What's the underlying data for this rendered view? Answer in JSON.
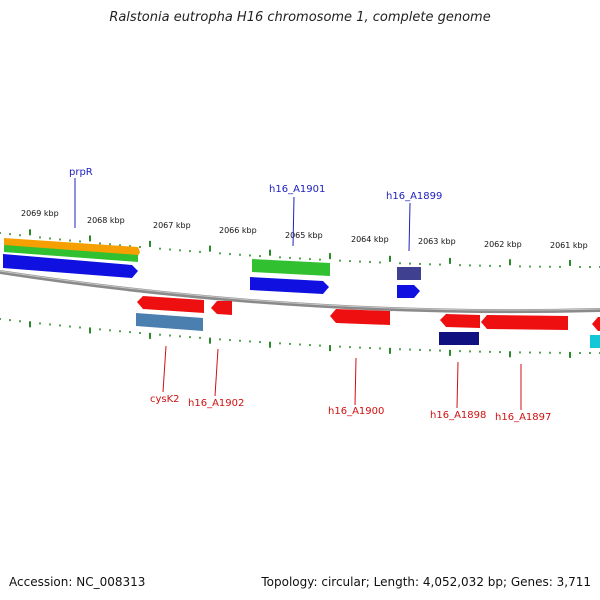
{
  "header": {
    "title": "Ralstonia eutropha H16 chromosome 1, complete genome"
  },
  "footer": {
    "accession": "Accession: NC_008313",
    "summary": "Topology: circular; Length: 4,052,032 bp; Genes: 3,711"
  },
  "colors": {
    "backbone": "#8a8a8a",
    "tick": "#2a8a2a",
    "forward_label": "#2020c0",
    "reverse_label": "#d01010",
    "scale_label": "#111111"
  },
  "scale_labels": [
    "2069 kbp",
    "2068 kbp",
    "2067 kbp",
    "2066 kbp",
    "2065 kbp",
    "2064 kbp",
    "2063 kbp",
    "2062 kbp",
    "2061 kbp"
  ],
  "gene_labels": {
    "prpR": "prpR",
    "h16_A1901": "h16_A1901",
    "h16_A1899": "h16_A1899",
    "cysK2": "cysK2",
    "h16_A1902": "h16_A1902",
    "h16_A1900": "h16_A1900",
    "h16_A1898": "h16_A1898",
    "h16_A1897": "h16_A1897"
  },
  "feature_colors": {
    "orange": "#f5a000",
    "green": "#30c030",
    "blue": "#1010e0",
    "slate": "#404090",
    "red": "#ee1010",
    "steel": "#4a7fb0",
    "navy": "#101080",
    "cyan": "#10c8d8"
  }
}
